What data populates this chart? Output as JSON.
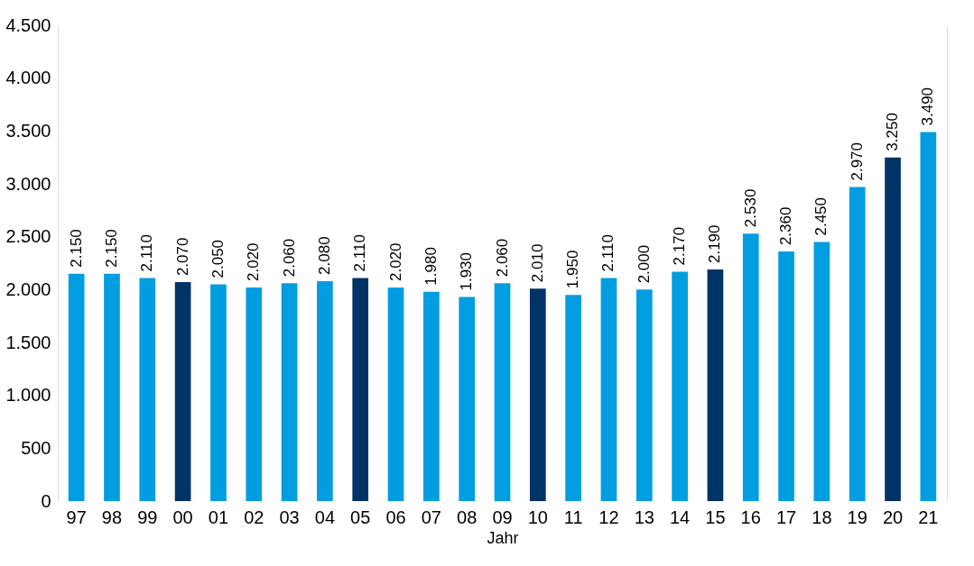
{
  "chart_data": {
    "type": "bar",
    "xlabel": "Jahr",
    "categories": [
      "97",
      "98",
      "99",
      "00",
      "01",
      "02",
      "03",
      "04",
      "05",
      "06",
      "07",
      "08",
      "09",
      "10",
      "11",
      "12",
      "13",
      "14",
      "15",
      "16",
      "17",
      "18",
      "19",
      "20",
      "21"
    ],
    "values": [
      2150,
      2150,
      2110,
      2070,
      2050,
      2020,
      2060,
      2080,
      2110,
      2020,
      1980,
      1930,
      2060,
      2010,
      1950,
      2110,
      2000,
      2170,
      2190,
      2530,
      2360,
      2450,
      2970,
      3250,
      3490
    ],
    "value_labels": [
      "2.150",
      "2.150",
      "2.110",
      "2.070",
      "2.050",
      "2.020",
      "2.060",
      "2.080",
      "2.110",
      "2.020",
      "1.980",
      "1.930",
      "2.060",
      "2.010",
      "1.950",
      "2.110",
      "2.000",
      "2.170",
      "2.190",
      "2.530",
      "2.360",
      "2.450",
      "2.970",
      "3.250",
      "3.490"
    ],
    "colors": [
      "#009ee0",
      "#009ee0",
      "#009ee0",
      "#003466",
      "#009ee0",
      "#009ee0",
      "#009ee0",
      "#009ee0",
      "#003466",
      "#009ee0",
      "#009ee0",
      "#009ee0",
      "#009ee0",
      "#003466",
      "#009ee0",
      "#009ee0",
      "#009ee0",
      "#009ee0",
      "#003466",
      "#009ee0",
      "#009ee0",
      "#009ee0",
      "#009ee0",
      "#003466",
      "#009ee0"
    ],
    "ylim": [
      0,
      4500
    ],
    "yticks": [
      {
        "value": 0,
        "label": "0"
      },
      {
        "value": 500,
        "label": "500"
      },
      {
        "value": 1000,
        "label": "1.000"
      },
      {
        "value": 1500,
        "label": "1.500"
      },
      {
        "value": 2000,
        "label": "2.000"
      },
      {
        "value": 2500,
        "label": "2.500"
      },
      {
        "value": 3000,
        "label": "3.000"
      },
      {
        "value": 3500,
        "label": "3.500"
      },
      {
        "value": 4000,
        "label": "4.000"
      },
      {
        "value": 4500,
        "label": "4.500"
      }
    ],
    "grid": "y"
  }
}
